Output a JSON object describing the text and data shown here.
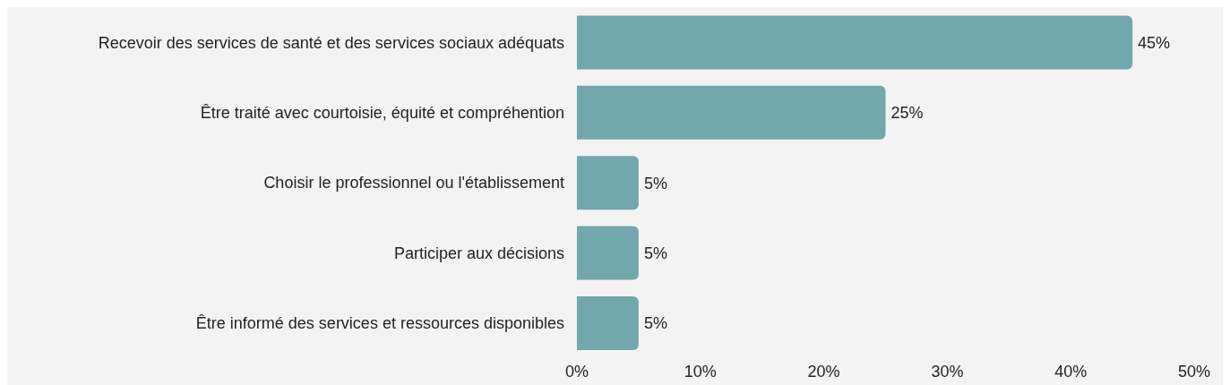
{
  "chart_data": {
    "type": "bar",
    "orientation": "horizontal",
    "categories": [
      "Recevoir des services de santé et des services sociaux adéquats",
      "Être traité avec courtoisie, équité et compréhention",
      "Choisir le professionnel ou l'établissement",
      "Participer aux décisions",
      "Être informé des services et ressources disponibles"
    ],
    "values": [
      45,
      25,
      5,
      5,
      5
    ],
    "value_labels": [
      "45%",
      "25%",
      "5%",
      "5%",
      "5%"
    ],
    "color": "#72a7ad",
    "xlim": [
      0,
      50
    ],
    "xticks": [
      {
        "value": 0,
        "label": "0%"
      },
      {
        "value": 10,
        "label": "10%"
      },
      {
        "value": 20,
        "label": "20%"
      },
      {
        "value": 30,
        "label": "30%"
      },
      {
        "value": 40,
        "label": "40%"
      },
      {
        "value": 50,
        "label": "50%"
      }
    ],
    "grid": false,
    "legend": false
  }
}
